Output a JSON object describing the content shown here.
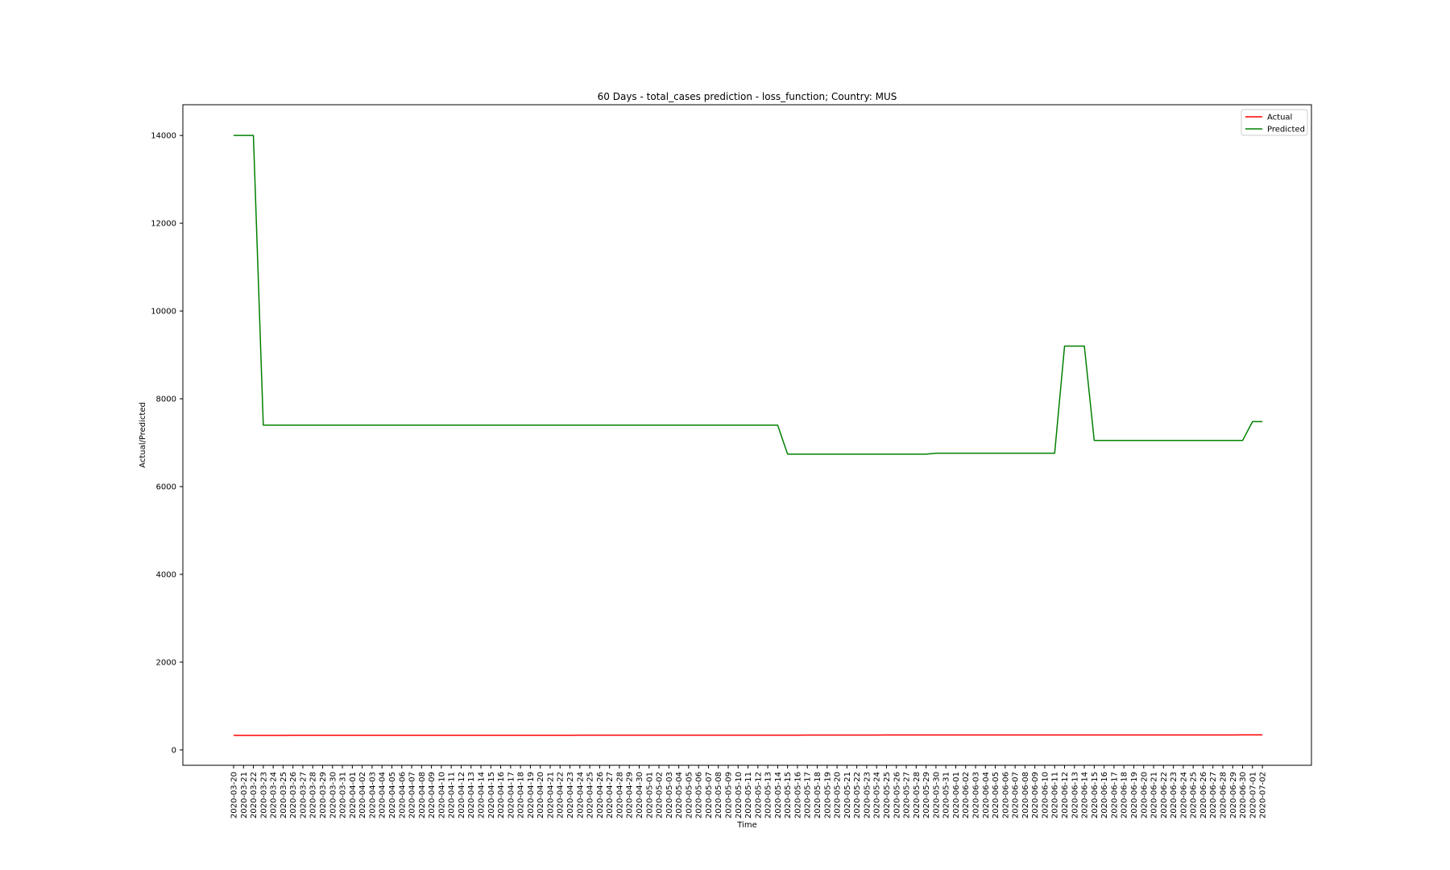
{
  "chart_data": {
    "type": "line",
    "title": "60 Days - total_cases prediction - loss_function; Country: MUS",
    "xlabel": "Time",
    "ylabel": "Actual/Predicted",
    "ylim": [
      -350,
      14700
    ],
    "yticks": [
      0,
      2000,
      4000,
      6000,
      8000,
      10000,
      12000,
      14000
    ],
    "grid": false,
    "legend_position": "top-right",
    "x": [
      "2020-03-20",
      "2020-03-21",
      "2020-03-22",
      "2020-03-23",
      "2020-03-24",
      "2020-03-25",
      "2020-03-26",
      "2020-03-27",
      "2020-03-28",
      "2020-03-29",
      "2020-03-30",
      "2020-03-31",
      "2020-04-01",
      "2020-04-02",
      "2020-04-03",
      "2020-04-04",
      "2020-04-05",
      "2020-04-06",
      "2020-04-07",
      "2020-04-08",
      "2020-04-09",
      "2020-04-10",
      "2020-04-11",
      "2020-04-12",
      "2020-04-13",
      "2020-04-14",
      "2020-04-15",
      "2020-04-16",
      "2020-04-17",
      "2020-04-18",
      "2020-04-19",
      "2020-04-20",
      "2020-04-21",
      "2020-04-22",
      "2020-04-23",
      "2020-04-24",
      "2020-04-25",
      "2020-04-26",
      "2020-04-27",
      "2020-04-28",
      "2020-04-29",
      "2020-04-30",
      "2020-05-01",
      "2020-05-02",
      "2020-05-03",
      "2020-05-04",
      "2020-05-05",
      "2020-05-06",
      "2020-05-07",
      "2020-05-08",
      "2020-05-09",
      "2020-05-10",
      "2020-05-11",
      "2020-05-12",
      "2020-05-13",
      "2020-05-14",
      "2020-05-15",
      "2020-05-16",
      "2020-05-17",
      "2020-05-18",
      "2020-05-19",
      "2020-05-20",
      "2020-05-21",
      "2020-05-22",
      "2020-05-23",
      "2020-05-24",
      "2020-05-25",
      "2020-05-26",
      "2020-05-27",
      "2020-05-28",
      "2020-05-29",
      "2020-05-30",
      "2020-05-31",
      "2020-06-01",
      "2020-06-02",
      "2020-06-03",
      "2020-06-04",
      "2020-06-05",
      "2020-06-06",
      "2020-06-07",
      "2020-06-08",
      "2020-06-09",
      "2020-06-10",
      "2020-06-11",
      "2020-06-12",
      "2020-06-13",
      "2020-06-14",
      "2020-06-15",
      "2020-06-16",
      "2020-06-17",
      "2020-06-18",
      "2020-06-19",
      "2020-06-20",
      "2020-06-21",
      "2020-06-22",
      "2020-06-23",
      "2020-06-24",
      "2020-06-25",
      "2020-06-26",
      "2020-06-27",
      "2020-06-28",
      "2020-06-29",
      "2020-06-30",
      "2020-07-01",
      "2020-07-02"
    ],
    "series": [
      {
        "name": "Actual",
        "color": "#ff0000",
        "values": [
          332,
          332,
          332,
          332,
          332,
          332,
          333,
          333,
          333,
          333,
          333,
          333,
          333,
          333,
          333,
          333,
          333,
          333,
          334,
          334,
          334,
          334,
          334,
          334,
          334,
          334,
          334,
          334,
          334,
          334,
          334,
          334,
          334,
          334,
          334,
          335,
          335,
          335,
          335,
          335,
          335,
          335,
          335,
          335,
          335,
          335,
          335,
          335,
          336,
          336,
          337,
          337,
          337,
          337,
          337,
          337,
          337,
          337,
          338,
          338,
          338,
          338,
          338,
          338,
          338,
          339,
          340,
          340,
          340,
          340,
          340,
          340,
          340,
          340,
          340,
          340,
          340,
          340,
          340,
          340,
          340,
          340,
          340,
          340,
          340,
          340,
          340,
          340,
          340,
          341,
          341,
          341,
          341,
          341,
          341,
          341,
          341,
          341,
          341,
          341,
          341,
          341,
          342,
          342,
          342
        ]
      },
      {
        "name": "Predicted",
        "color": "#008000",
        "values": [
          14000,
          14000,
          14000,
          7400,
          7400,
          7400,
          7400,
          7400,
          7400,
          7400,
          7400,
          7400,
          7400,
          7400,
          7400,
          7400,
          7400,
          7400,
          7400,
          7400,
          7400,
          7400,
          7400,
          7400,
          7400,
          7400,
          7400,
          7400,
          7400,
          7400,
          7400,
          7400,
          7400,
          7400,
          7400,
          7400,
          7400,
          7400,
          7400,
          7400,
          7400,
          7400,
          7400,
          7400,
          7400,
          7400,
          7400,
          7400,
          7400,
          7400,
          7400,
          7400,
          7400,
          7400,
          7400,
          7400,
          6740,
          6740,
          6740,
          6740,
          6740,
          6740,
          6740,
          6740,
          6740,
          6740,
          6740,
          6740,
          6740,
          6740,
          6740,
          6760,
          6760,
          6760,
          6760,
          6760,
          6760,
          6760,
          6760,
          6760,
          6760,
          6760,
          6760,
          6760,
          9200,
          9200,
          9200,
          7050,
          7050,
          7050,
          7050,
          7050,
          7050,
          7050,
          7050,
          7050,
          7050,
          7050,
          7050,
          7050,
          7050,
          7050,
          7050,
          7480,
          7480
        ]
      }
    ]
  }
}
